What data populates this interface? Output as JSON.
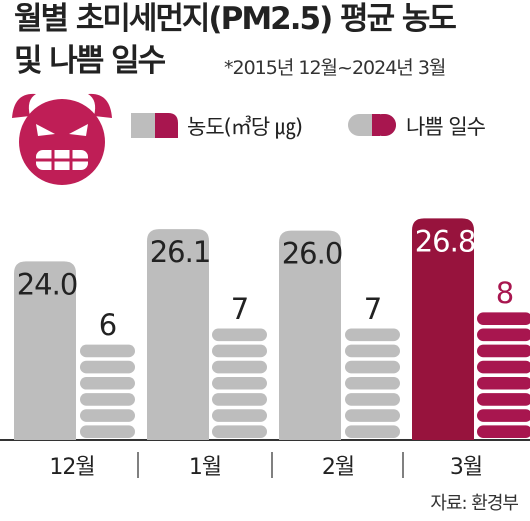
{
  "title_line1": "월별 초미세먼지(PM2.5) 평균 농도",
  "title_line2": "및 나쁨 일수",
  "period": "*2015년 12월~2024년 3월",
  "legend": {
    "concentration": "농도(㎥당 ㎍)",
    "bad_days": "나쁨 일수"
  },
  "source": "자료: 환경부",
  "colors": {
    "gray_bar": "#bdbdbd",
    "bad_bar": "#a8164f",
    "highlight_bar": "#97133d",
    "icon": "#bf1e56"
  },
  "icon": "devil-face-icon",
  "chart_data": {
    "type": "bar",
    "categories": [
      "12월",
      "1월",
      "2월",
      "3월"
    ],
    "series": [
      {
        "name": "농도(㎥당 ㎍)",
        "values": [
          24.0,
          26.1,
          26.0,
          26.8
        ],
        "labels": [
          "24.0",
          "26.1",
          "26.0",
          "26.8"
        ]
      },
      {
        "name": "나쁨 일수",
        "values": [
          6,
          7,
          7,
          8
        ],
        "labels": [
          "6",
          "7",
          "7",
          "8"
        ]
      }
    ],
    "highlight_category": "3월",
    "ylim": [
      0,
      30
    ]
  }
}
